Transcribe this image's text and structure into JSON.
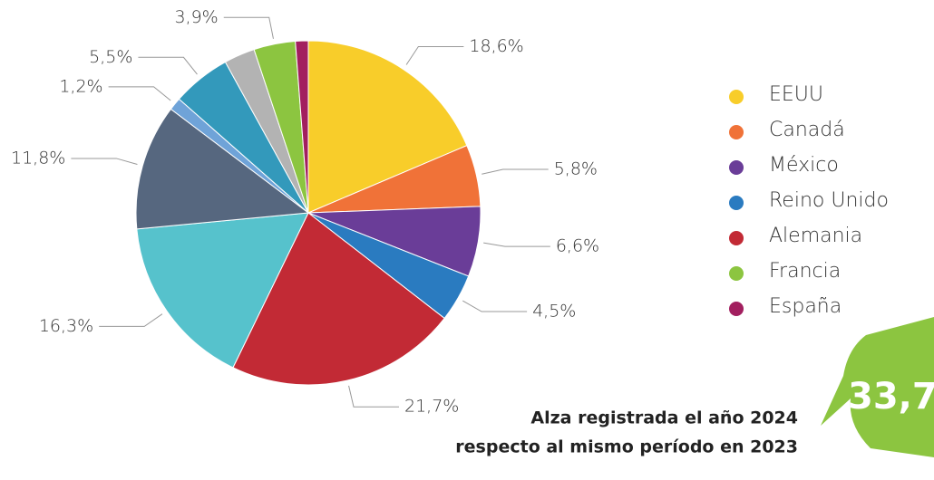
{
  "chart_data": {
    "type": "pie",
    "categories": [
      "EEUU",
      "Canadá",
      "México",
      "Reino Unido",
      "Alemania",
      null,
      null,
      null,
      null,
      null,
      "Francia",
      "España"
    ],
    "values": [
      18.6,
      5.8,
      6.6,
      4.5,
      21.7,
      16.3,
      11.8,
      1.2,
      5.5,
      2.9,
      3.9,
      1.2
    ],
    "value_labels": [
      "18,6%",
      "5,8%",
      "6,6%",
      "4,5%",
      "21,7%",
      "16,3%",
      "11,8%",
      "1,2%",
      "5,5%",
      null,
      "3,9%",
      null
    ],
    "colors": [
      "#f8cd2a",
      "#f07238",
      "#6a3d98",
      "#2a7bc0",
      "#c22a35",
      "#56c2cc",
      "#56677f",
      "#6fa3d8",
      "#3399bb",
      "#b3b3b3",
      "#8cc540",
      "#a21f5f"
    ],
    "legend": "right"
  },
  "callout": {
    "value": "33,7",
    "text": [
      "Alza registrada el año 2024",
      "respecto al mismo período en 2023"
    ]
  }
}
